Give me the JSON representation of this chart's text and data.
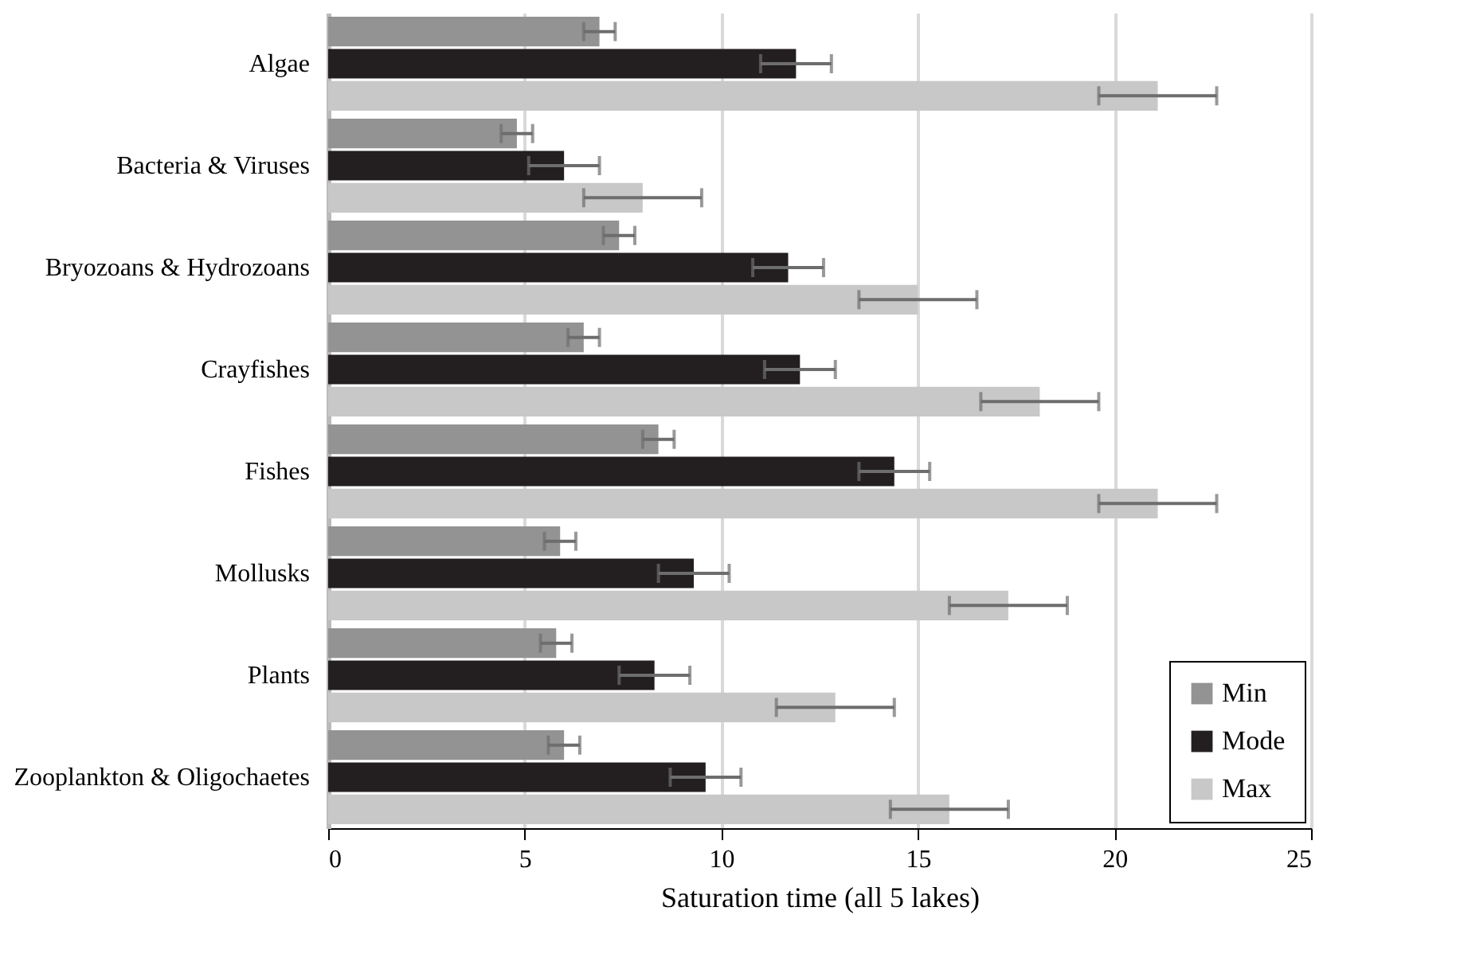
{
  "chart_data": {
    "type": "bar",
    "orientation": "horizontal",
    "xlabel": "Saturation time (all 5 lakes)",
    "categories": [
      "Algae",
      "Bacteria & Viruses",
      "Bryozoans & Hydrozoans",
      "Crayfishes",
      "Fishes",
      "Mollusks",
      "Plants",
      "Zooplankton & Oligochaetes"
    ],
    "series": [
      {
        "name": "Min",
        "color": "#939393",
        "values": [
          6.9,
          4.8,
          7.4,
          6.5,
          8.4,
          5.9,
          5.8,
          6.0
        ],
        "errors": [
          0.4,
          0.4,
          0.4,
          0.4,
          0.4,
          0.4,
          0.4,
          0.4
        ]
      },
      {
        "name": "Mode",
        "color": "#231f20",
        "values": [
          11.9,
          6.0,
          11.7,
          12.0,
          14.4,
          9.3,
          8.3,
          9.6
        ],
        "errors": [
          0.9,
          0.9,
          0.9,
          0.9,
          0.9,
          0.9,
          0.9,
          0.9
        ]
      },
      {
        "name": "Max",
        "color": "#c8c8c8",
        "values": [
          21.1,
          8.0,
          15.0,
          18.1,
          21.1,
          17.3,
          12.9,
          15.8
        ],
        "errors": [
          1.5,
          1.5,
          1.5,
          1.5,
          1.5,
          1.5,
          1.5,
          1.5
        ]
      }
    ],
    "xlim": [
      0,
      25
    ],
    "xticks": [
      0,
      5,
      10,
      15,
      20,
      25
    ],
    "grid": "x",
    "legend": "bottom right"
  }
}
